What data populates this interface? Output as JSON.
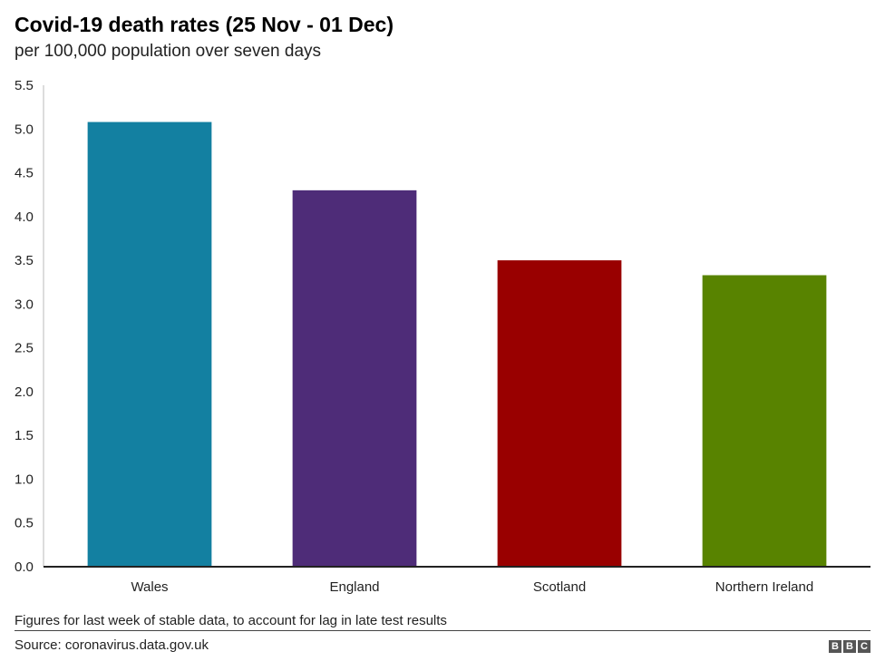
{
  "header": {
    "title": "Covid-19 death rates (25 Nov - 01 Dec)",
    "subtitle": "per 100,000 population over seven days"
  },
  "chart_data": {
    "type": "bar",
    "categories": [
      "Wales",
      "England",
      "Scotland",
      "Northern Ireland"
    ],
    "values": [
      5.08,
      4.3,
      3.5,
      3.33
    ],
    "colors": [
      "#1380A1",
      "#4E2C78",
      "#990000",
      "#588300"
    ],
    "title": "Covid-19 death rates (25 Nov - 01 Dec)",
    "subtitle": "per 100,000 population over seven days",
    "xlabel": "",
    "ylabel": "",
    "ylim": [
      0,
      5.5
    ],
    "yticks": [
      "0.0",
      "0.5",
      "1.0",
      "1.5",
      "2.0",
      "2.5",
      "3.0",
      "3.5",
      "4.0",
      "4.5",
      "5.0",
      "5.5"
    ],
    "grid": false,
    "legend": "none"
  },
  "footer": {
    "note": "Figures for last week of stable data, to account for lag in late test results",
    "source": "Source: coronavirus.data.gov.uk",
    "logo_letters": [
      "B",
      "B",
      "C"
    ]
  }
}
